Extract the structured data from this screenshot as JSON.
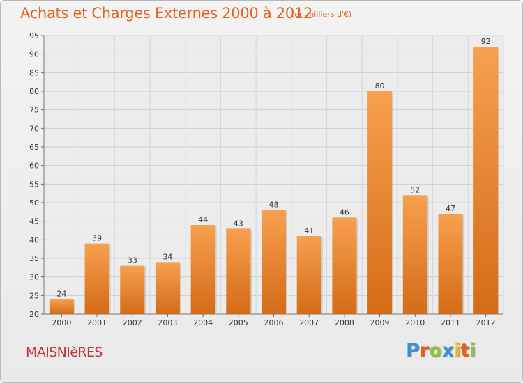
{
  "chart_data": {
    "type": "bar",
    "title": "Achats et Charges Externes 2000 à 2012",
    "subtitle": "(en milliers d'€)",
    "categories": [
      "2000",
      "2001",
      "2002",
      "2003",
      "2004",
      "2005",
      "2006",
      "2007",
      "2008",
      "2009",
      "2010",
      "2011",
      "2012"
    ],
    "values": [
      24,
      39,
      33,
      34,
      44,
      43,
      48,
      41,
      46,
      80,
      52,
      47,
      92
    ],
    "ylim": [
      20,
      95
    ],
    "yticks": [
      20,
      25,
      30,
      35,
      40,
      45,
      50,
      55,
      60,
      65,
      70,
      75,
      80,
      85,
      90,
      95
    ],
    "grid": true,
    "colors": {
      "bar_top": "#f7a04f",
      "bar_bottom": "#d46b17",
      "title": "#e8611c"
    }
  },
  "footer": {
    "place": "MAISNIèRES",
    "brand_letters": [
      "P",
      "r",
      "o",
      "x",
      "i",
      "t",
      "i"
    ],
    "brand_colors": [
      "#3a8fd6",
      "#e85d1c",
      "#8cc63f",
      "#3a8fd6",
      "#f1b71c",
      "#e85d1c",
      "#8cc63f"
    ]
  }
}
